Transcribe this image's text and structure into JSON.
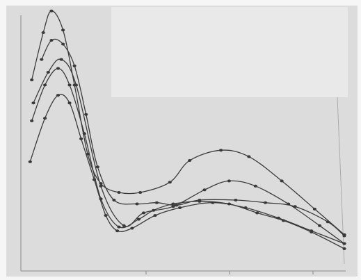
{
  "chart_data": {
    "type": "line",
    "title": "",
    "xlabel": "",
    "ylabel": "",
    "grid": false,
    "legend": "none",
    "series_labels": [
      "",
      "",
      "",
      "",
      ""
    ],
    "series": [
      {
        "x": [
          1.0,
          1.7,
          2.2,
          2.9,
          3.6,
          4.4,
          5.2,
          6.3,
          7.6,
          9.4,
          10.6,
          12.5,
          14.2,
          16.2,
          18.2,
          20.0
        ],
        "y": [
          72.0,
          90.5,
          99.0,
          91.5,
          70.0,
          43.0,
          31.5,
          28.0,
          28.0,
          32.0,
          40.5,
          44.5,
          42.0,
          32.5,
          21.5,
          11.5
        ]
      },
      {
        "x": [
          1.6,
          2.2,
          2.9,
          3.6,
          4.3,
          5.0,
          6.0,
          7.4,
          8.6,
          9.8,
          11.2,
          13.4,
          15.2,
          17.0,
          19.0,
          20.0
        ],
        "y": [
          80.0,
          87.5,
          86.0,
          77.5,
          58.5,
          38.0,
          25.0,
          23.5,
          24.0,
          23.0,
          25.0,
          25.0,
          24.0,
          22.5,
          16.5,
          11.0
        ]
      },
      {
        "x": [
          1.1,
          2.0,
          2.8,
          3.7,
          5.2,
          6.6,
          7.8,
          9.6,
          11.5,
          13.0,
          14.6,
          16.6,
          18.5,
          20.0
        ],
        "y": [
          63.0,
          75.0,
          80.0,
          70.0,
          30.5,
          15.0,
          20.0,
          22.5,
          29.0,
          32.5,
          30.5,
          23.5,
          15.0,
          8.0
        ]
      },
      {
        "x": [
          1.0,
          1.8,
          2.6,
          3.3,
          4.2,
          5.2,
          6.3,
          7.5,
          8.4,
          9.6,
          11.2,
          13.0,
          14.7,
          16.3,
          18.0,
          20.0
        ],
        "y": [
          56.0,
          70.0,
          76.5,
          70.0,
          51.0,
          25.5,
          14.5,
          17.5,
          21.0,
          23.5,
          24.5,
          23.5,
          20.0,
          17.0,
          12.5,
          6.0
        ]
      },
      {
        "x": [
          0.9,
          1.8,
          2.6,
          3.3,
          4.0,
          4.8,
          5.5,
          6.2,
          7.1,
          8.5,
          10.0,
          12.0,
          14.0,
          16.0,
          18.0,
          20.0
        ],
        "y": [
          40.0,
          57.0,
          66.0,
          63.0,
          49.0,
          33.0,
          19.0,
          13.0,
          14.0,
          19.0,
          22.0,
          24.0,
          22.0,
          18.0,
          13.0,
          8.0
        ]
      }
    ],
    "xlim": [
      0,
      20
    ],
    "ylim": [
      0,
      100
    ]
  }
}
